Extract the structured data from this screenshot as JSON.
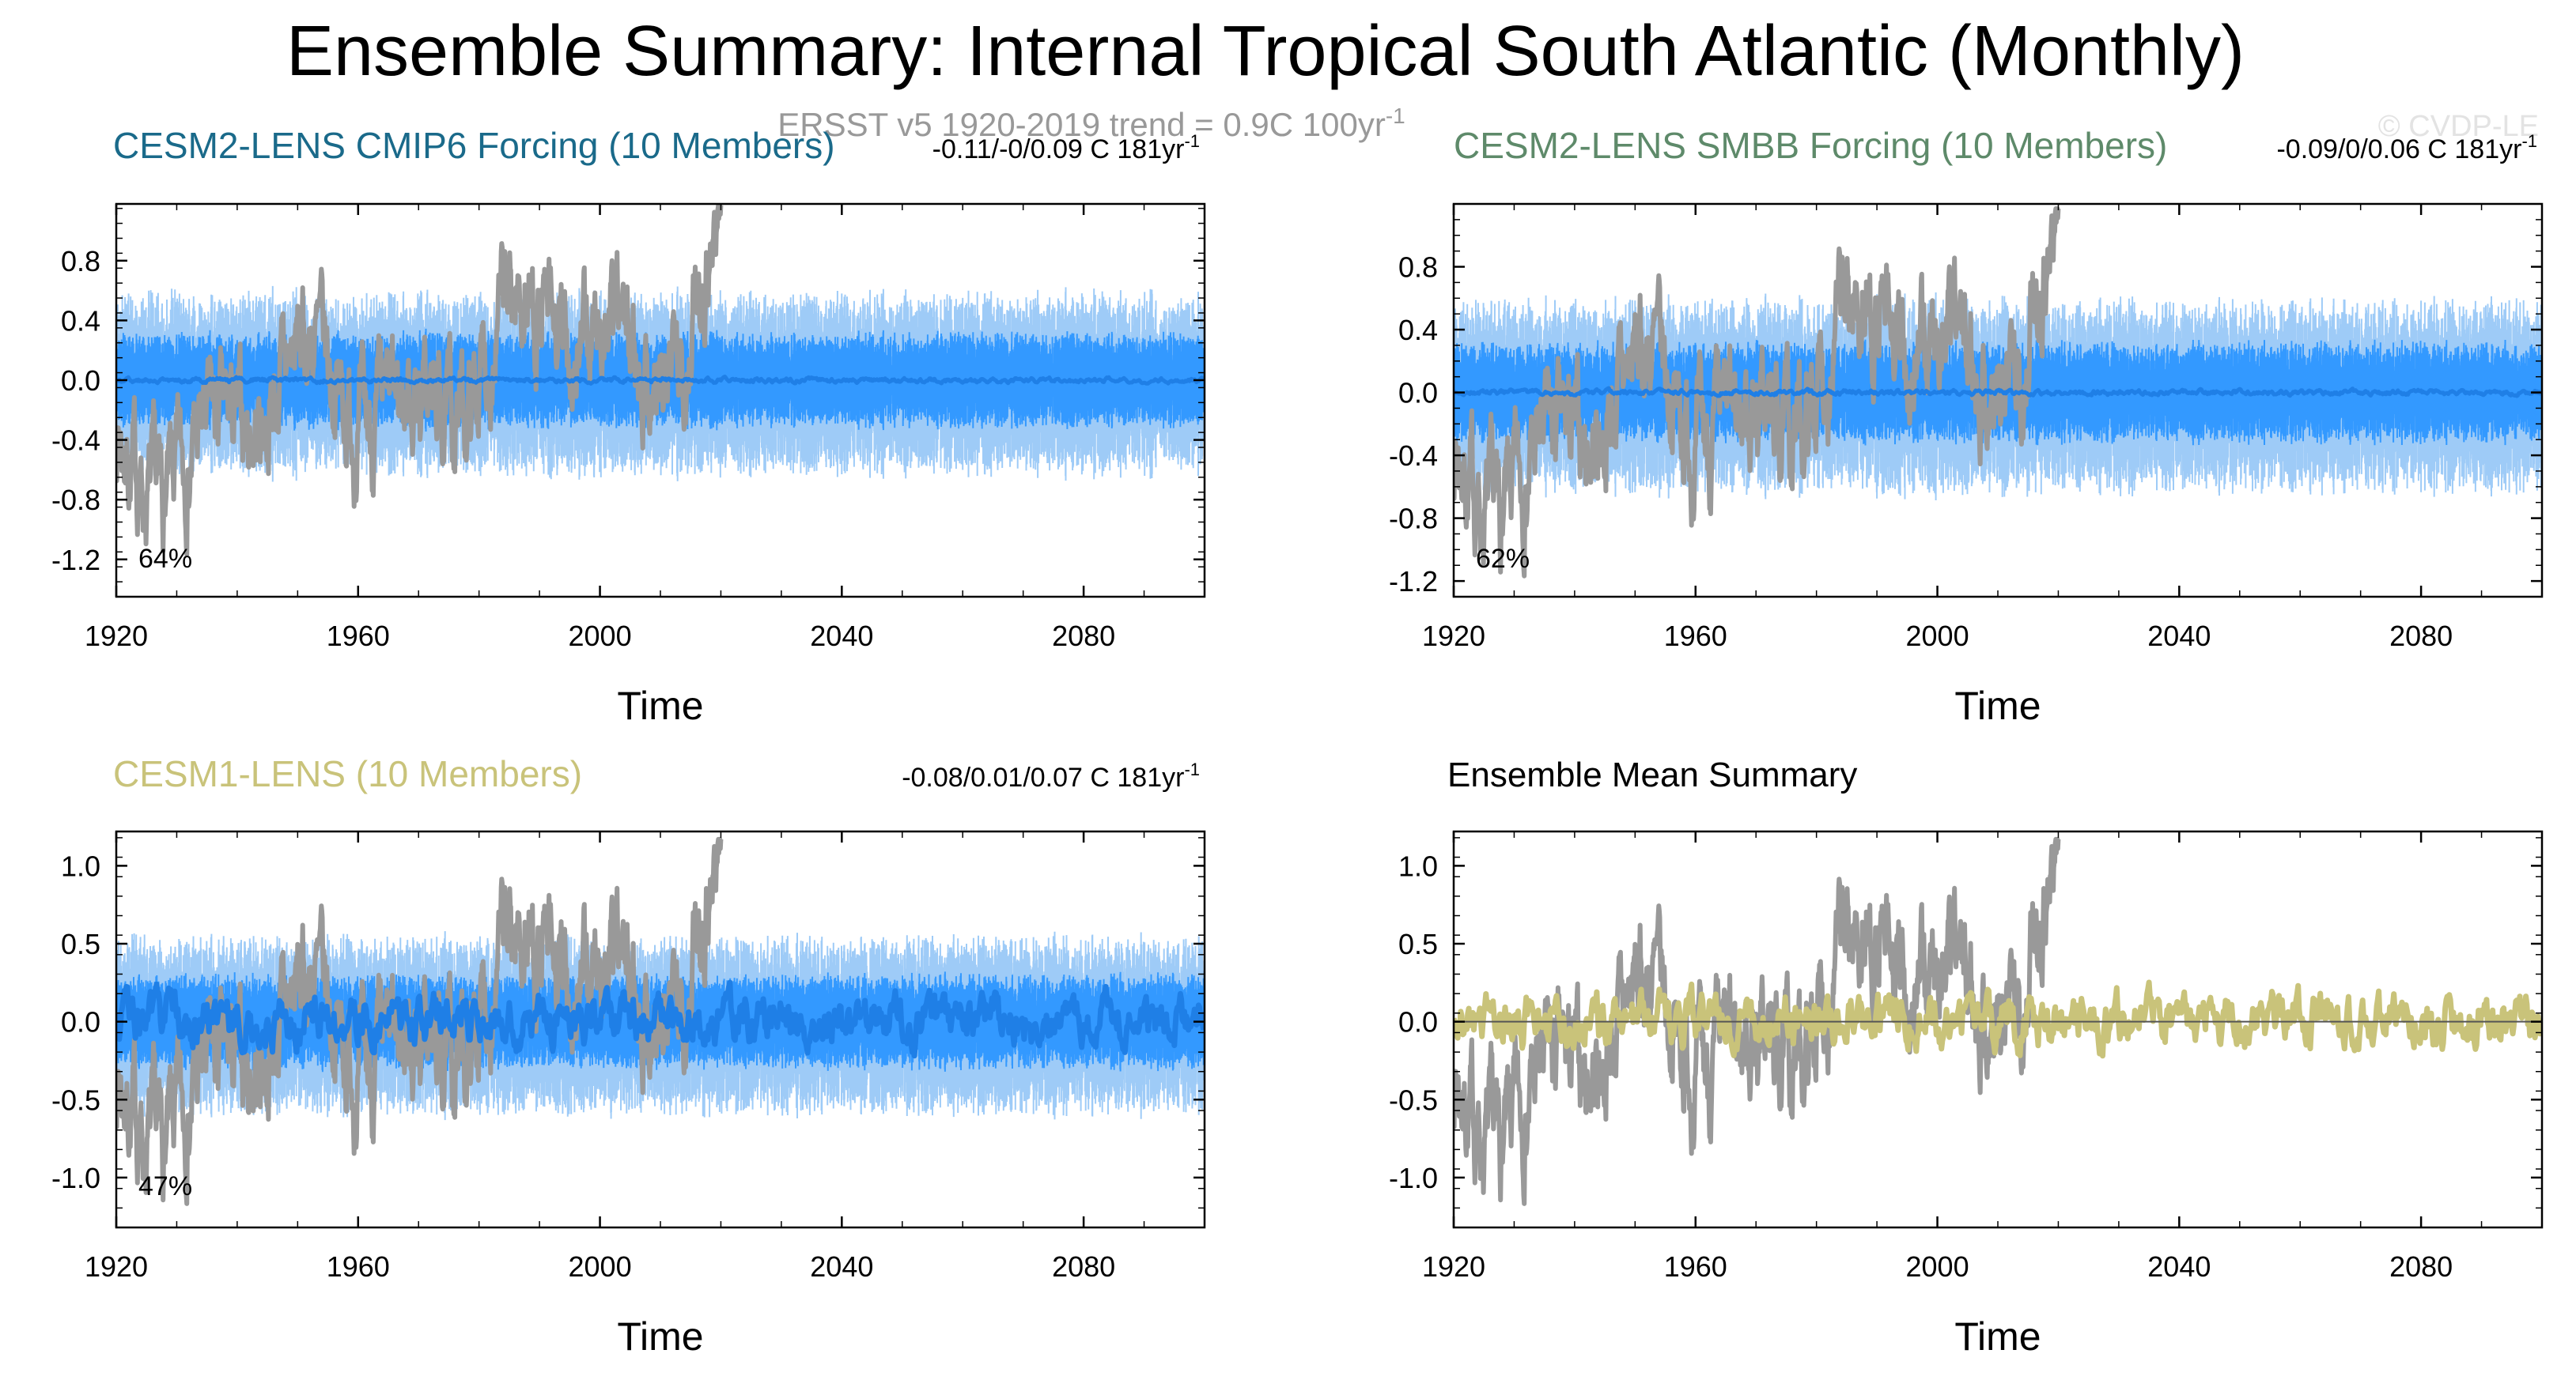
{
  "figure": {
    "title": "Ensemble Summary: Internal Tropical South Atlantic (Monthly)",
    "observation_note": "ERSST v5 1920-2019 trend = 0.9C 100yr",
    "observation_note_exponent": "-1",
    "watermark": "© CVDP-LE"
  },
  "colors": {
    "observed": "#999999",
    "ensemble_outer": "#9ecbf7",
    "ensemble_inner": "#3399ff",
    "ensemble_mean": "#1f7fe6",
    "cesm2_cmip6_title": "#1a6a8a",
    "cesm2_smbb_title": "#5e8a6a",
    "cesm1_title": "#c9c37a",
    "ensemble_mean_line": "#c9c37a"
  },
  "chart_data": [
    {
      "type": "line",
      "panel_title": "CESM2-LENS CMIP6 Forcing (10 Members)",
      "trend_text": "-0.11/-0/0.09 C 181yr",
      "trend_exponent": "-1",
      "percent_label": "64%",
      "xlabel": "Time",
      "ylabel": "",
      "xlim": [
        1920,
        2100
      ],
      "ylim": [
        -1.45,
        1.18
      ],
      "x_ticks": [
        1920,
        1960,
        2000,
        2040,
        2080
      ],
      "y_ticks": [
        0.8,
        0.4,
        0.0,
        -0.4,
        -0.8,
        -1.2
      ],
      "y_tick_labels": [
        "0.8",
        "0.4",
        "0.0",
        "-0.4",
        "-0.8",
        "-1.2"
      ],
      "series": [
        {
          "kind": "obs",
          "x_range": [
            1920,
            2020
          ],
          "seed": 7,
          "amp": 0.45,
          "scale": 1.0
        },
        {
          "kind": "spread",
          "x_range": [
            1920,
            2100
          ],
          "outer_amp": 0.55,
          "inner_amp": 0.3
        },
        {
          "kind": "mean",
          "x_range": [
            1920,
            2100
          ],
          "amp": 0.01
        }
      ]
    },
    {
      "type": "line",
      "panel_title": "CESM2-LENS SMBB Forcing (10 Members)",
      "trend_text": "-0.09/0/0.06 C 181yr",
      "trend_exponent": "-1",
      "percent_label": "62%",
      "xlabel": "Time",
      "ylabel": "",
      "xlim": [
        1920,
        2100
      ],
      "ylim": [
        -1.3,
        1.2
      ],
      "x_ticks": [
        1920,
        1960,
        2000,
        2040,
        2080
      ],
      "y_ticks": [
        0.8,
        0.4,
        0.0,
        -0.4,
        -0.8,
        -1.2
      ],
      "y_tick_labels": [
        "0.8",
        "0.4",
        "0.0",
        "-0.4",
        "-0.8",
        "-1.2"
      ],
      "series": [
        {
          "kind": "obs",
          "x_range": [
            1920,
            2020
          ],
          "seed": 7,
          "amp": 0.45,
          "scale": 1.0
        },
        {
          "kind": "spread",
          "x_range": [
            1920,
            2100
          ],
          "outer_amp": 0.55,
          "inner_amp": 0.3
        },
        {
          "kind": "mean",
          "x_range": [
            1920,
            2100
          ],
          "amp": 0.01
        }
      ]
    },
    {
      "type": "line",
      "panel_title": "CESM1-LENS (10 Members)",
      "trend_text": "-0.08/0.01/0.07 C 181yr",
      "trend_exponent": "-1",
      "percent_label": "47%",
      "xlabel": "Time",
      "ylabel": "",
      "xlim": [
        1920,
        2100
      ],
      "ylim": [
        -1.32,
        1.22
      ],
      "x_ticks": [
        1920,
        1960,
        2000,
        2040,
        2080
      ],
      "y_ticks": [
        1.0,
        0.5,
        0.0,
        -0.5,
        -1.0
      ],
      "y_tick_labels": [
        "1.0",
        "0.5",
        "0.0",
        "-0.5",
        "-1.0"
      ],
      "series": [
        {
          "kind": "obs",
          "x_range": [
            1920,
            2020
          ],
          "seed": 7,
          "amp": 0.45,
          "scale": 1.0
        },
        {
          "kind": "spread",
          "x_range": [
            1920,
            2100
          ],
          "outer_amp": 0.5,
          "inner_amp": 0.28
        },
        {
          "kind": "mean",
          "x_range": [
            1920,
            2100
          ],
          "amp": 0.09
        }
      ]
    },
    {
      "type": "line",
      "panel_title": "Ensemble Mean Summary",
      "trend_text": "",
      "trend_exponent": "",
      "percent_label": "",
      "xlabel": "Time",
      "ylabel": "",
      "xlim": [
        1920,
        2100
      ],
      "ylim": [
        -1.32,
        1.22
      ],
      "x_ticks": [
        1920,
        1960,
        2000,
        2040,
        2080
      ],
      "y_ticks": [
        1.0,
        0.5,
        0.0,
        -0.5,
        -1.0
      ],
      "y_tick_labels": [
        "1.0",
        "0.5",
        "0.0",
        "-0.5",
        "-1.0"
      ],
      "series": [
        {
          "kind": "obs",
          "x_range": [
            1920,
            2020
          ],
          "seed": 7,
          "amp": 0.45,
          "scale": 1.0
        },
        {
          "kind": "mean_summary",
          "x_range": [
            1920,
            2100
          ],
          "amp": 0.1
        }
      ]
    }
  ]
}
